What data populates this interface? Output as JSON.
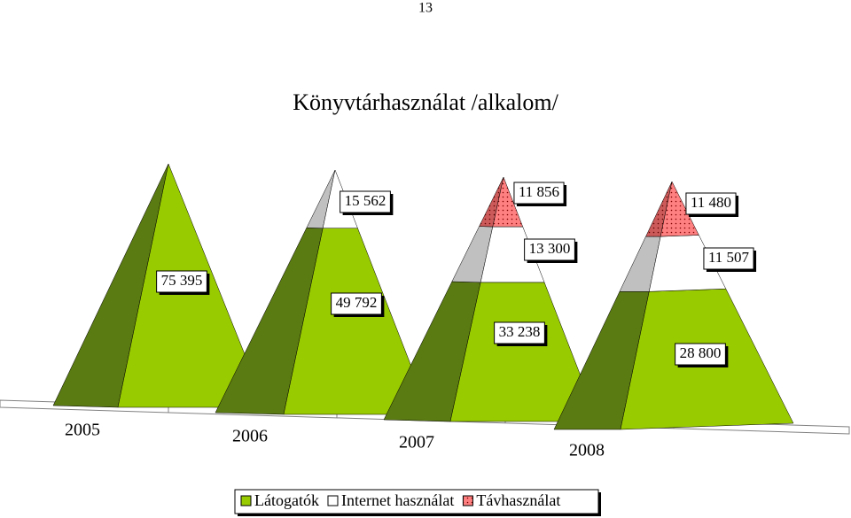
{
  "page_number": "13",
  "chart_data": {
    "type": "pyramid",
    "title": "Könyvtárhasználat /alkalom/",
    "categories": [
      "2005",
      "2006",
      "2007",
      "2008"
    ],
    "series": [
      {
        "name": "Látogatók",
        "color": "#99cc00",
        "values": [
          75395,
          49792,
          33238,
          28800
        ],
        "value_labels": [
          "75 395",
          "49 792",
          "33 238",
          "28 800"
        ]
      },
      {
        "name": "Internet használat",
        "color": "#ffffff",
        "values": [
          null,
          15562,
          13300,
          11507
        ],
        "value_labels": [
          null,
          "15 562",
          "13 300",
          "11 507"
        ]
      },
      {
        "name": "Távhasználat",
        "color": "#ff8080",
        "values": [
          null,
          null,
          11856,
          11480
        ],
        "value_labels": [
          null,
          null,
          "11 856",
          "11 480"
        ]
      }
    ]
  }
}
